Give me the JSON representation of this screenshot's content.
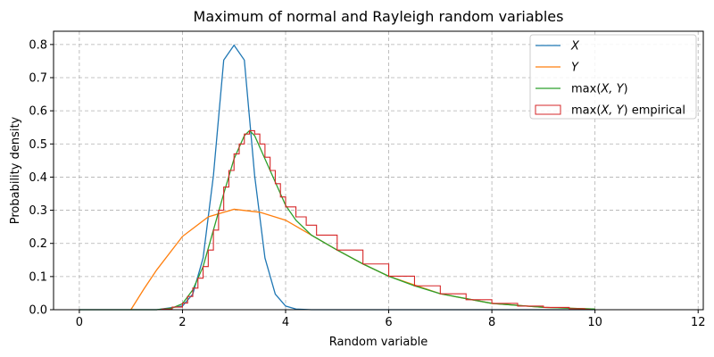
{
  "chart_data": {
    "type": "line",
    "title": "Maximum of normal and Rayleigh random variables",
    "xlabel": "Random variable",
    "ylabel": "Probability density",
    "xlim": [
      -0.5,
      12.1
    ],
    "ylim": [
      0,
      0.84
    ],
    "x_ticks": [
      0,
      2,
      4,
      6,
      8,
      10,
      12
    ],
    "y_ticks": [
      0.0,
      0.1,
      0.2,
      0.3,
      0.4,
      0.5,
      0.6,
      0.7,
      0.8
    ],
    "x_tick_labels": [
      "0",
      "2",
      "4",
      "6",
      "8",
      "10",
      "12"
    ],
    "y_tick_labels": [
      "0.0",
      "0.1",
      "0.2",
      "0.3",
      "0.4",
      "0.5",
      "0.6",
      "0.7",
      "0.8"
    ],
    "grid": true,
    "legend_position": "top-right",
    "series": [
      {
        "name": "X",
        "kind": "line",
        "color": "#1f77b4",
        "x": [
          0,
          1.5,
          2.0,
          2.2,
          2.4,
          2.6,
          2.8,
          3.0,
          3.2,
          3.4,
          3.6,
          3.8,
          4.0,
          4.2,
          4.5,
          5.0,
          10
        ],
        "y": [
          0,
          0.0,
          0.011,
          0.047,
          0.156,
          0.404,
          0.753,
          0.798,
          0.753,
          0.404,
          0.156,
          0.047,
          0.011,
          0.002,
          0.0,
          0.0,
          0
        ]
      },
      {
        "name": "Y",
        "kind": "line",
        "color": "#ff7f0e",
        "x": [
          1.0,
          1.25,
          1.5,
          2.0,
          2.5,
          3.0,
          3.5,
          4.0,
          4.5,
          5.0,
          5.5,
          6.0,
          7.0,
          8.0,
          9.0,
          10.0
        ],
        "y": [
          0.0,
          0.062,
          0.12,
          0.221,
          0.28,
          0.303,
          0.294,
          0.27,
          0.225,
          0.18,
          0.138,
          0.101,
          0.048,
          0.019,
          0.007,
          0.002
        ]
      },
      {
        "name": "max(X, Y)",
        "kind": "line",
        "color": "#2ca02c",
        "x": [
          0,
          1.5,
          1.8,
          2.0,
          2.2,
          2.4,
          2.6,
          2.8,
          3.0,
          3.2,
          3.3,
          3.4,
          3.6,
          3.8,
          4.0,
          4.2,
          4.5,
          5.0,
          5.5,
          6.0,
          6.5,
          7.0,
          8.0,
          9.0,
          10.0
        ],
        "y": [
          0,
          0.0,
          0.005,
          0.018,
          0.06,
          0.13,
          0.24,
          0.35,
          0.455,
          0.525,
          0.54,
          0.525,
          0.455,
          0.385,
          0.315,
          0.27,
          0.225,
          0.18,
          0.138,
          0.101,
          0.072,
          0.048,
          0.019,
          0.007,
          0.002
        ]
      },
      {
        "name": "max(X, Y) empirical",
        "kind": "step-histogram",
        "color": "#d62728",
        "x": [
          1.6,
          1.8,
          2.0,
          2.1,
          2.2,
          2.3,
          2.4,
          2.5,
          2.6,
          2.7,
          2.8,
          2.9,
          3.0,
          3.1,
          3.2,
          3.3,
          3.4,
          3.5,
          3.6,
          3.7,
          3.8,
          3.9,
          4.0,
          4.2,
          4.4,
          4.6,
          5.0,
          5.5,
          6.0,
          6.5,
          7.0,
          7.5,
          8.0,
          8.5,
          9.0,
          9.5,
          9.8
        ],
        "y": [
          0.002,
          0.008,
          0.02,
          0.04,
          0.065,
          0.095,
          0.13,
          0.18,
          0.24,
          0.3,
          0.37,
          0.42,
          0.47,
          0.5,
          0.53,
          0.54,
          0.53,
          0.5,
          0.46,
          0.42,
          0.38,
          0.34,
          0.31,
          0.28,
          0.255,
          0.225,
          0.18,
          0.138,
          0.101,
          0.072,
          0.048,
          0.03,
          0.019,
          0.011,
          0.007,
          0.003,
          0.001
        ]
      }
    ],
    "legend": [
      {
        "label_main": "X",
        "label_suffix": "",
        "italic": true,
        "color": "#1f77b4",
        "kind": "line"
      },
      {
        "label_main": "Y",
        "label_suffix": "",
        "italic": true,
        "color": "#ff7f0e",
        "kind": "line"
      },
      {
        "label_main": "max(",
        "label_vars": "X, Y",
        "label_suffix": ")",
        "color": "#2ca02c",
        "kind": "line"
      },
      {
        "label_main": "max(",
        "label_vars": "X, Y",
        "label_suffix": ") empirical",
        "color": "#d62728",
        "kind": "patch"
      }
    ]
  }
}
